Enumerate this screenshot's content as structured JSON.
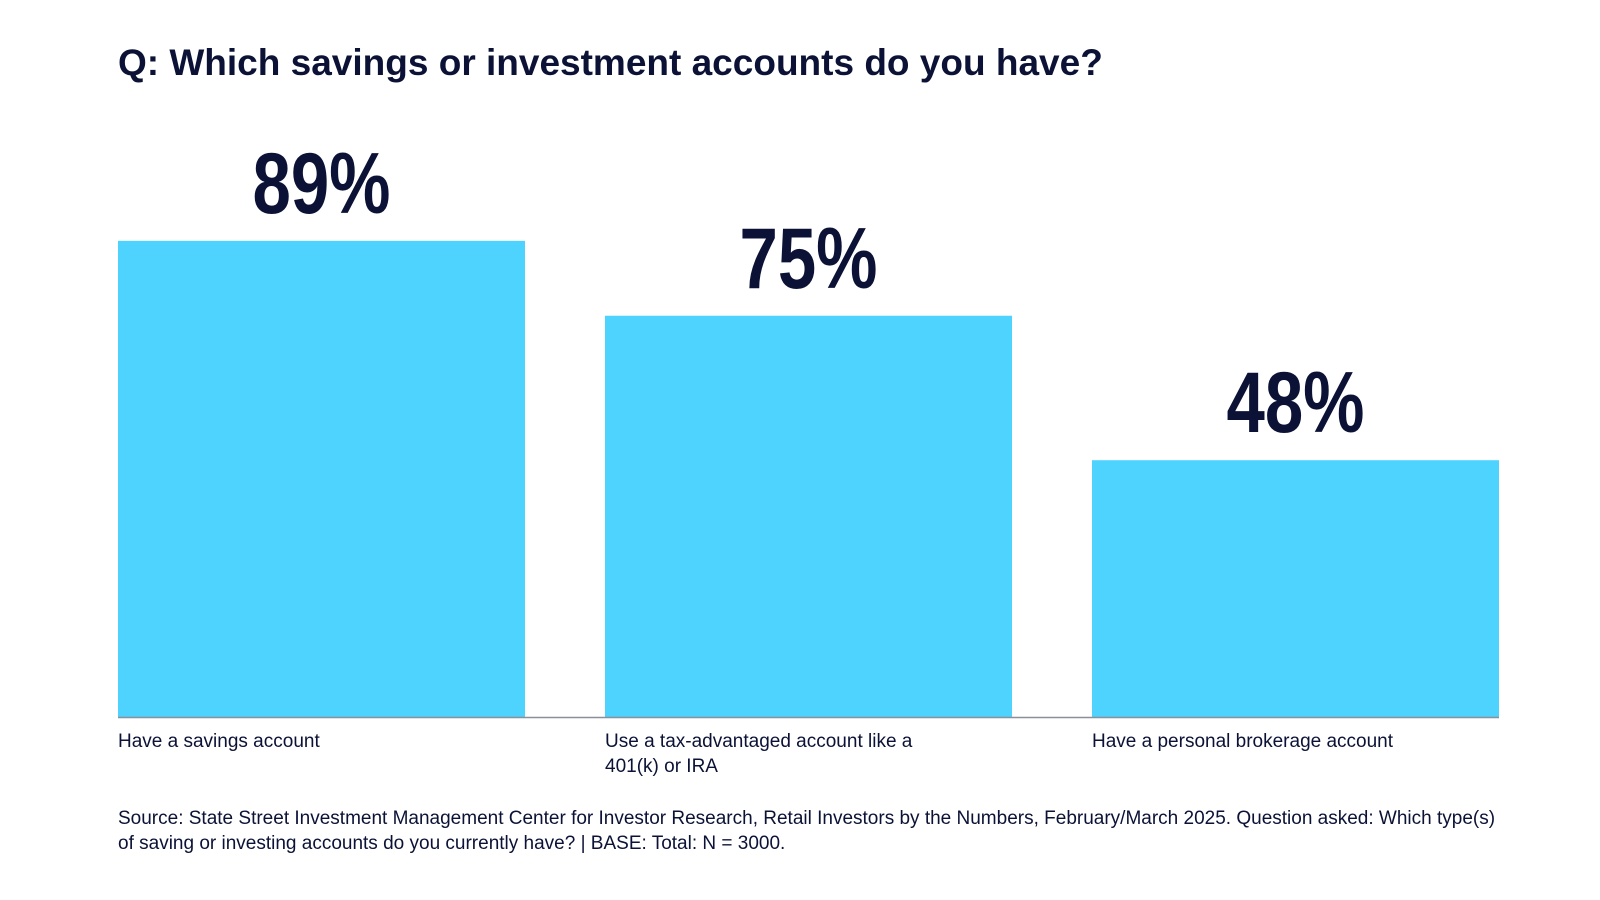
{
  "chart_data": {
    "type": "bar",
    "title": "Q: Which savings or investment accounts do you have?",
    "categories": [
      "Have a savings account",
      "Use a tax-advantaged account like a 401(k) or IRA",
      "Have a personal brokerage account"
    ],
    "values": [
      89,
      75,
      48
    ],
    "value_labels": [
      "89%",
      "75%",
      "48%"
    ],
    "unit": "%",
    "ylim": [
      0,
      100
    ],
    "grid": false,
    "legend": "none",
    "bar_color": "#4dd3fd",
    "text_color": "#0b1236",
    "axis_color": "#8a8f99"
  },
  "source": "Source: State Street Investment Management Center for Investor Research, Retail Investors by the Numbers, February/March 2025. Question asked: Which type(s) of saving or investing accounts do you currently have? | BASE: Total: N = 3000."
}
